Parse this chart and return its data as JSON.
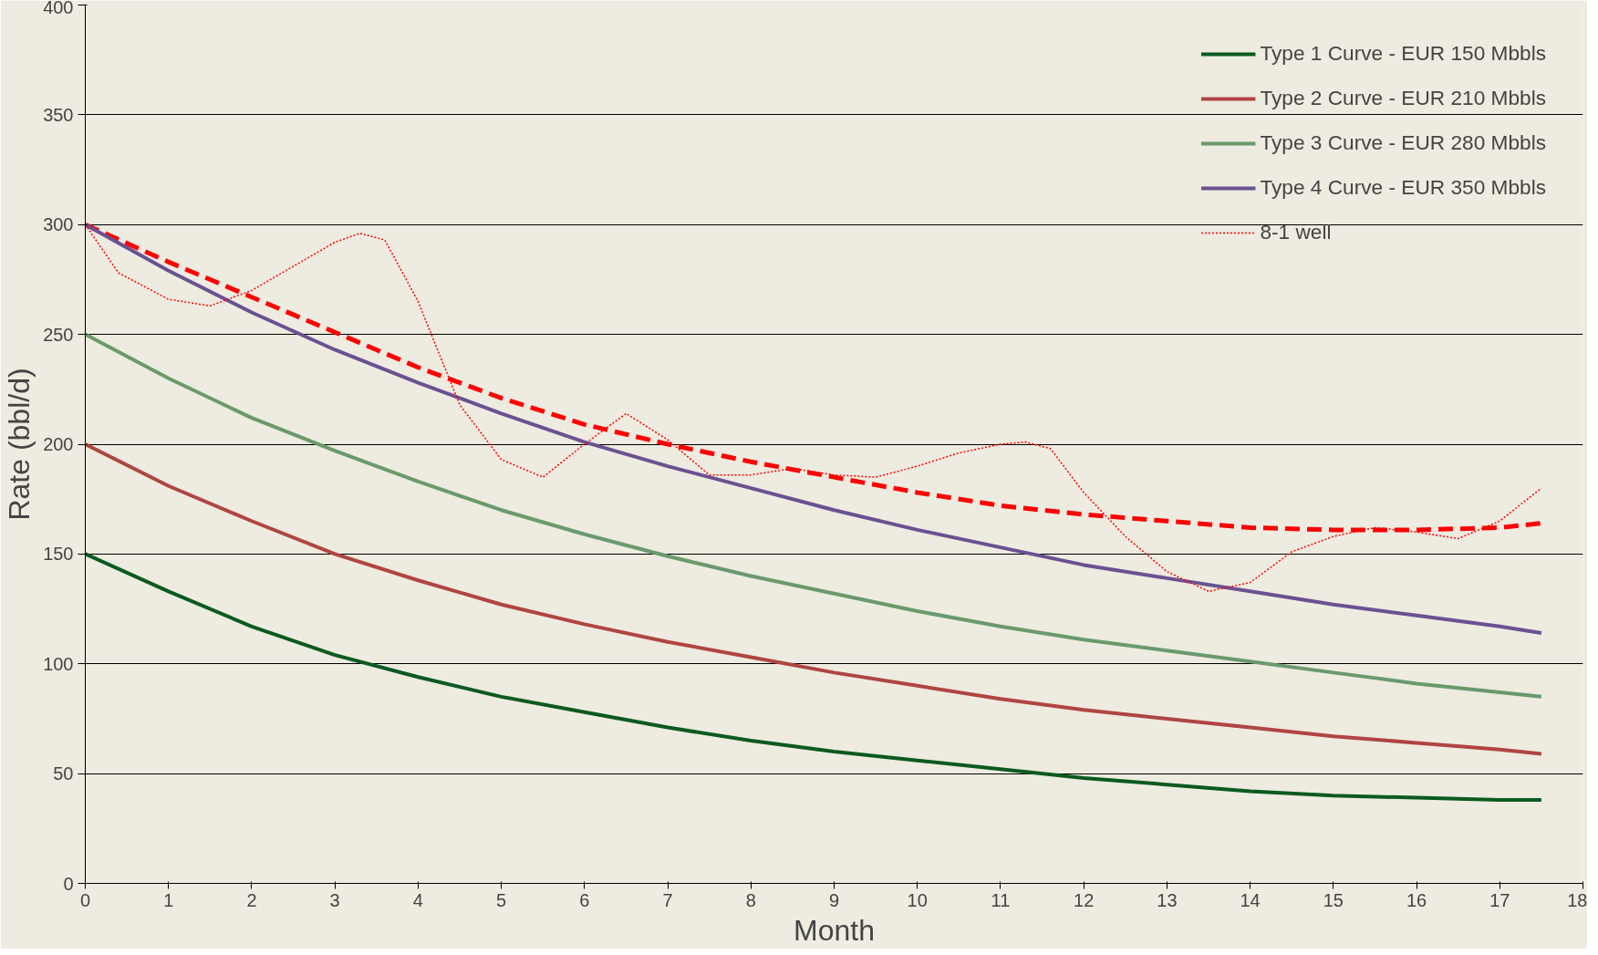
{
  "chart_data": {
    "type": "line",
    "xlabel": "Month",
    "ylabel": "Rate (bbl/d)",
    "x": [
      0,
      1,
      2,
      3,
      4,
      5,
      6,
      7,
      8,
      9,
      10,
      11,
      12,
      13,
      14,
      15,
      16,
      17,
      17.5
    ],
    "xlim": [
      0,
      18
    ],
    "xticks": [
      0,
      1,
      2,
      3,
      4,
      5,
      6,
      7,
      8,
      9,
      10,
      11,
      12,
      13,
      14,
      15,
      16,
      17,
      18
    ],
    "ylim": [
      0,
      400
    ],
    "yticks": [
      0,
      50,
      100,
      150,
      200,
      250,
      300,
      350,
      400
    ],
    "grid": "y",
    "legend": "top right",
    "marker": "none",
    "series": [
      {
        "name": "Type 1 Curve - EUR 150 Mbbls",
        "color": "#0b5a20",
        "line_style": "solid",
        "values": [
          150,
          133,
          117,
          104,
          94,
          85,
          78,
          71,
          65,
          60,
          56,
          52,
          48,
          45,
          42,
          40,
          39,
          38,
          38
        ]
      },
      {
        "name": "Type 2 Curve - EUR 210 Mbbls",
        "color": "#b04542",
        "line_style": "solid",
        "values": [
          200,
          181,
          165,
          150,
          138,
          127,
          118,
          110,
          103,
          96,
          90,
          84,
          79,
          75,
          71,
          67,
          64,
          61,
          59
        ]
      },
      {
        "name": "Type 3 Curve - EUR 280 Mbbls",
        "color": "#6a9a6c",
        "line_style": "solid",
        "values": [
          250,
          230,
          212,
          197,
          183,
          170,
          159,
          149,
          140,
          132,
          124,
          117,
          111,
          106,
          101,
          96,
          91,
          87,
          85
        ]
      },
      {
        "name": "Type 4 Curve - EUR 350 Mbbls",
        "color": "#6a5192",
        "line_style": "solid",
        "values": [
          300,
          279,
          260,
          243,
          228,
          214,
          201,
          190,
          180,
          170,
          161,
          153,
          145,
          139,
          133,
          127,
          122,
          117,
          114
        ]
      },
      {
        "name": "8-1 well",
        "color": "#ff0000",
        "line_style": "dotted",
        "x": [
          0,
          0.4,
          1,
          1.5,
          2,
          2.5,
          3,
          3.3,
          3.6,
          4,
          4.5,
          5,
          5.5,
          6,
          6.5,
          7,
          7.5,
          8,
          8.5,
          9,
          9.5,
          10,
          10.5,
          11,
          11.3,
          11.6,
          12,
          12.5,
          13,
          13.5,
          14,
          14.5,
          15,
          15.5,
          16,
          16.5,
          17,
          17.5
        ],
        "values": [
          300,
          278,
          266,
          263,
          270,
          281,
          292,
          296,
          293,
          265,
          218,
          193,
          185,
          200,
          214,
          202,
          186,
          186,
          189,
          186,
          185,
          190,
          196,
          200,
          201,
          198,
          178,
          158,
          142,
          133,
          137,
          151,
          158,
          162,
          160,
          157,
          165,
          180
        ]
      },
      {
        "color": "#ff0000",
        "line_style": "dashed",
        "values": [
          300,
          283,
          267,
          251,
          235,
          221,
          209,
          200,
          192,
          185,
          178,
          172,
          168,
          165,
          162,
          161,
          161,
          162,
          164
        ]
      }
    ]
  }
}
